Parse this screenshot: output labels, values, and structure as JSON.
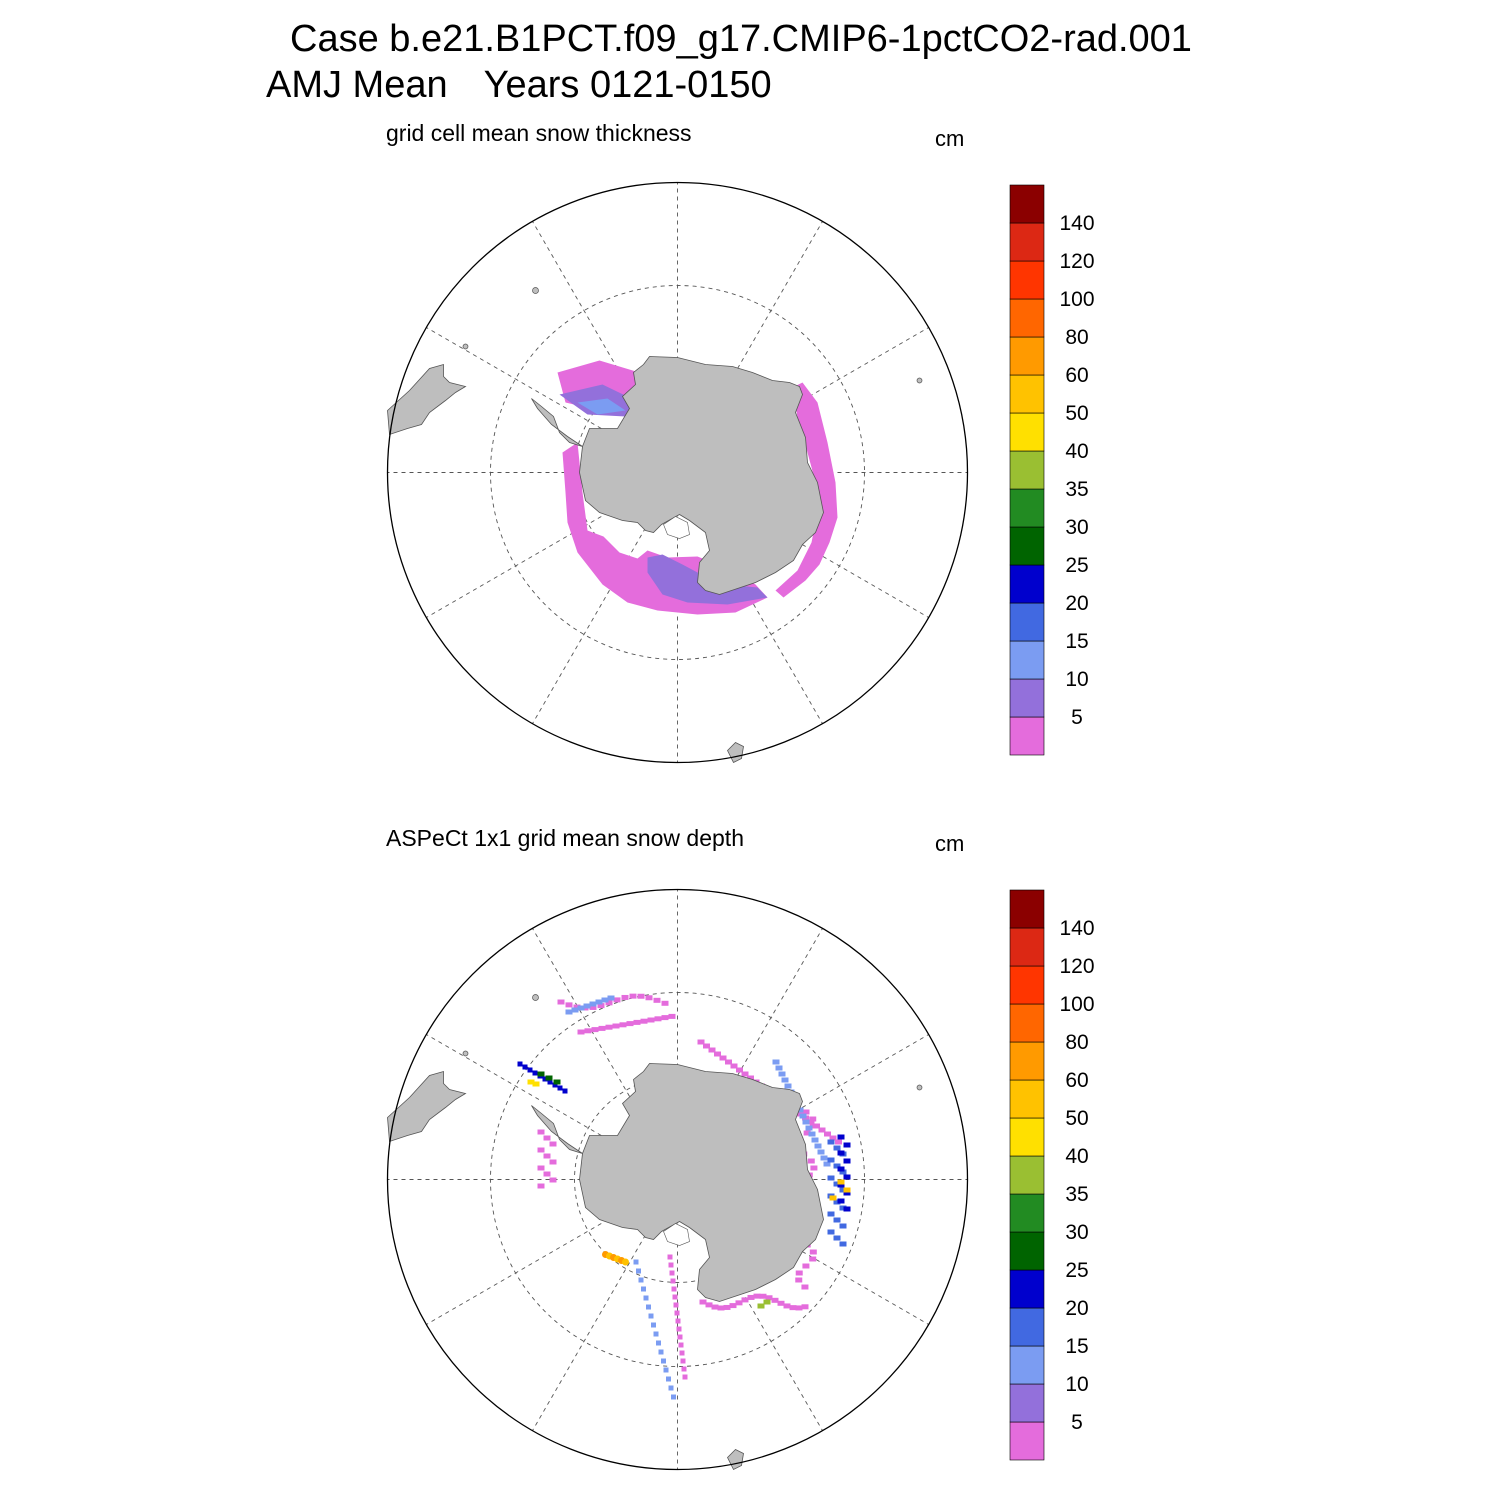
{
  "title_line1": "Case b.e21.B1PCT.f09_g17.CMIP6-1pctCO2-rad.001",
  "title_season": "AMJ Mean",
  "title_years": "Years 0121-0150",
  "colors": {
    "land": "#bebebe",
    "coast": "#555555",
    "grid": "#555555"
  },
  "colorbar": {
    "levels": [
      "5",
      "10",
      "15",
      "20",
      "25",
      "30",
      "35",
      "40",
      "50",
      "60",
      "80",
      "100",
      "120",
      "140"
    ],
    "colors": [
      "#e46cdc",
      "#9370db",
      "#7b9cf2",
      "#4169e1",
      "#0000cd",
      "#006400",
      "#228b22",
      "#9abf32",
      "#ffe000",
      "#ffc200",
      "#ff9a00",
      "#ff6600",
      "#ff3500",
      "#dc2814",
      "#8b0000"
    ]
  },
  "panels": [
    {
      "title": "grid cell mean snow thickness",
      "units": "cm",
      "icon": "snow-thickness-map"
    },
    {
      "title": "ASPeCt 1x1 grid mean snow depth",
      "units": "cm",
      "icon": "aspect-snow-depth-map"
    }
  ]
}
